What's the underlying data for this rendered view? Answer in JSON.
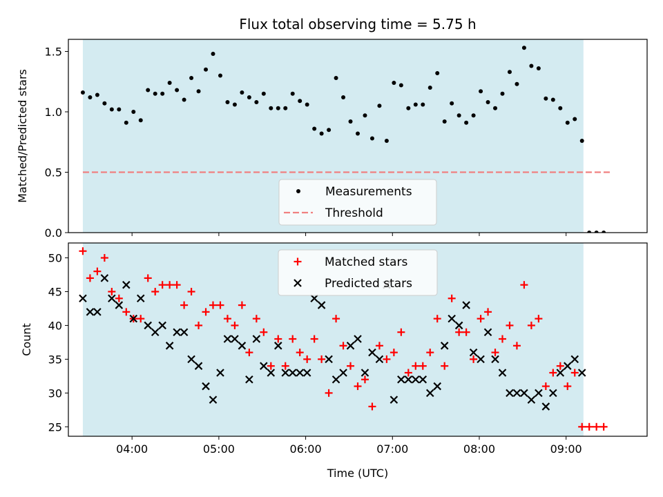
{
  "chart_data": [
    {
      "type": "scatter",
      "title": "Flux total observing time = 5.75 h",
      "xlabel": "",
      "ylabel": "Matched/Predicted stars",
      "ylim": [
        0,
        1.6
      ],
      "yticks": [
        0.0,
        0.5,
        1.0,
        1.5
      ],
      "ytick_labels": [
        "0.0",
        "0.5",
        "1.0",
        "1.5"
      ],
      "xlim": [
        "03:16",
        "09:56"
      ],
      "xticks": [
        "04:00",
        "05:00",
        "06:00",
        "07:00",
        "08:00",
        "09:00"
      ],
      "observing_window": [
        "03:26",
        "09:12"
      ],
      "threshold": 0.5,
      "legend": {
        "position": "lower-center",
        "entries": [
          "Measurements",
          "Threshold"
        ]
      },
      "series": [
        {
          "name": "Measurements",
          "marker": "dot",
          "color": "#000000",
          "x": [
            "03:26",
            "03:31",
            "03:36",
            "03:41",
            "03:46",
            "03:51",
            "03:56",
            "04:01",
            "04:06",
            "04:11",
            "04:16",
            "04:21",
            "04:26",
            "04:31",
            "04:36",
            "04:41",
            "04:46",
            "04:51",
            "04:56",
            "05:01",
            "05:06",
            "05:11",
            "05:16",
            "05:21",
            "05:26",
            "05:31",
            "05:36",
            "05:41",
            "05:46",
            "05:51",
            "05:56",
            "06:01",
            "06:06",
            "06:11",
            "06:16",
            "06:21",
            "06:26",
            "06:31",
            "06:36",
            "06:41",
            "06:46",
            "06:51",
            "06:56",
            "07:01",
            "07:06",
            "07:11",
            "07:16",
            "07:21",
            "07:26",
            "07:31",
            "07:36",
            "07:41",
            "07:46",
            "07:51",
            "07:56",
            "08:01",
            "08:06",
            "08:11",
            "08:16",
            "08:21",
            "08:26",
            "08:31",
            "08:36",
            "08:41",
            "08:46",
            "08:51",
            "08:56",
            "09:01",
            "09:06",
            "09:11",
            "09:16",
            "09:21",
            "09:26"
          ],
          "y": [
            1.16,
            1.12,
            1.14,
            1.07,
            1.02,
            1.02,
            0.91,
            1.0,
            0.93,
            1.18,
            1.15,
            1.15,
            1.24,
            1.18,
            1.1,
            1.28,
            1.17,
            1.35,
            1.48,
            1.3,
            1.08,
            1.06,
            1.16,
            1.12,
            1.08,
            1.15,
            1.03,
            1.03,
            1.03,
            1.15,
            1.09,
            1.06,
            0.86,
            0.82,
            0.85,
            1.28,
            1.12,
            0.92,
            0.82,
            0.97,
            0.78,
            1.05,
            0.76,
            1.24,
            1.22,
            1.03,
            1.06,
            1.06,
            1.2,
            1.32,
            0.92,
            1.07,
            0.97,
            0.91,
            0.97,
            1.17,
            1.08,
            1.03,
            1.15,
            1.33,
            1.23,
            1.53,
            1.38,
            1.36,
            1.11,
            1.1,
            1.03,
            0.91,
            0.94,
            0.76,
            0.0,
            0.0,
            0.0
          ]
        },
        {
          "name": "Threshold",
          "marker": "dashed-line",
          "color": "#f08080",
          "x": [
            "03:26",
            "09:32"
          ],
          "y": [
            0.5,
            0.5
          ]
        }
      ]
    },
    {
      "type": "scatter",
      "title": "",
      "xlabel": "Time (UTC)",
      "ylabel": "Count",
      "ylim": [
        23.6,
        52.2
      ],
      "yticks": [
        25,
        30,
        35,
        40,
        45,
        50
      ],
      "xlim": [
        "03:16",
        "09:56"
      ],
      "xticks": [
        "04:00",
        "05:00",
        "06:00",
        "07:00",
        "08:00",
        "09:00"
      ],
      "observing_window": [
        "03:26",
        "09:12"
      ],
      "legend": {
        "position": "upper-center",
        "entries": [
          "Matched stars",
          "Predicted stars"
        ]
      },
      "series": [
        {
          "name": "Matched stars",
          "marker": "plus",
          "color": "#ff0000",
          "x": [
            "03:26",
            "03:31",
            "03:36",
            "03:41",
            "03:46",
            "03:51",
            "03:56",
            "04:01",
            "04:06",
            "04:11",
            "04:16",
            "04:21",
            "04:26",
            "04:31",
            "04:36",
            "04:41",
            "04:46",
            "04:51",
            "04:56",
            "05:01",
            "05:06",
            "05:11",
            "05:16",
            "05:21",
            "05:26",
            "05:31",
            "05:36",
            "05:41",
            "05:46",
            "05:51",
            "05:56",
            "06:01",
            "06:06",
            "06:11",
            "06:16",
            "06:21",
            "06:26",
            "06:31",
            "06:36",
            "06:41",
            "06:46",
            "06:51",
            "06:56",
            "07:01",
            "07:06",
            "07:11",
            "07:16",
            "07:21",
            "07:26",
            "07:31",
            "07:36",
            "07:41",
            "07:46",
            "07:51",
            "07:56",
            "08:01",
            "08:06",
            "08:11",
            "08:16",
            "08:21",
            "08:26",
            "08:31",
            "08:36",
            "08:41",
            "08:46",
            "08:51",
            "08:56",
            "09:01",
            "09:06",
            "09:11",
            "09:16",
            "09:21",
            "09:26"
          ],
          "y": [
            51,
            47,
            48,
            50,
            45,
            44,
            42,
            41,
            41,
            47,
            45,
            46,
            46,
            46,
            43,
            45,
            40,
            42,
            43,
            43,
            41,
            40,
            43,
            36,
            41,
            39,
            34,
            38,
            34,
            38,
            36,
            35,
            38,
            35,
            30,
            41,
            37,
            34,
            31,
            32,
            28,
            37,
            35,
            36,
            39,
            33,
            34,
            34,
            36,
            41,
            34,
            44,
            39,
            39,
            35,
            41,
            42,
            36,
            38,
            40,
            37,
            46,
            40,
            41,
            31,
            33,
            34,
            31,
            33,
            25,
            25,
            25,
            25
          ]
        },
        {
          "name": "Predicted stars",
          "marker": "x",
          "color": "#000000",
          "x": [
            "03:26",
            "03:31",
            "03:36",
            "03:41",
            "03:46",
            "03:51",
            "03:56",
            "04:01",
            "04:06",
            "04:11",
            "04:16",
            "04:21",
            "04:26",
            "04:31",
            "04:36",
            "04:41",
            "04:46",
            "04:51",
            "04:56",
            "05:01",
            "05:06",
            "05:11",
            "05:16",
            "05:21",
            "05:26",
            "05:31",
            "05:36",
            "05:41",
            "05:46",
            "05:51",
            "05:56",
            "06:01",
            "06:06",
            "06:11",
            "06:16",
            "06:21",
            "06:26",
            "06:31",
            "06:36",
            "06:41",
            "06:46",
            "06:51",
            "06:56",
            "07:01",
            "07:06",
            "07:11",
            "07:16",
            "07:21",
            "07:26",
            "07:31",
            "07:36",
            "07:41",
            "07:46",
            "07:51",
            "07:56",
            "08:01",
            "08:06",
            "08:11",
            "08:16",
            "08:21",
            "08:26",
            "08:31",
            "08:36",
            "08:41",
            "08:46",
            "08:51",
            "08:56",
            "09:01",
            "09:06",
            "09:11"
          ],
          "y": [
            44,
            42,
            42,
            47,
            44,
            43,
            46,
            41,
            44,
            40,
            39,
            40,
            37,
            39,
            39,
            35,
            34,
            31,
            29,
            33,
            38,
            38,
            37,
            32,
            38,
            34,
            33,
            37,
            33,
            33,
            33,
            33,
            44,
            43,
            35,
            32,
            33,
            37,
            38,
            33,
            36,
            35,
            46,
            29,
            32,
            32,
            32,
            32,
            30,
            31,
            37,
            41,
            40,
            43,
            36,
            35,
            39,
            35,
            33,
            30,
            30,
            30,
            29,
            30,
            28,
            30,
            33,
            34,
            35,
            33
          ]
        }
      ]
    }
  ]
}
